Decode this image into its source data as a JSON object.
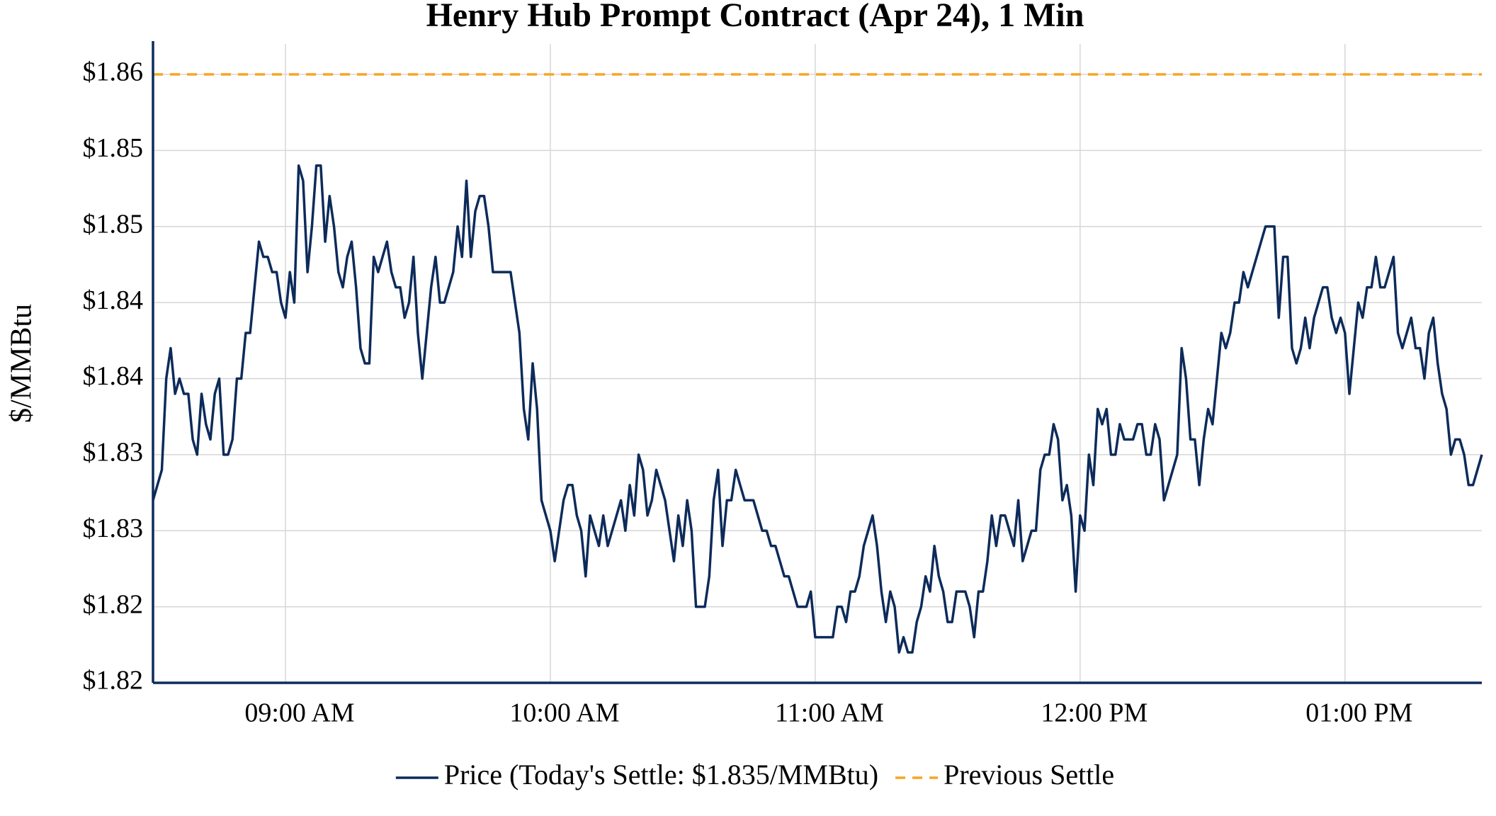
{
  "chart_data": {
    "type": "line",
    "title": "Henry Hub Prompt Contract (Apr 24), 1 Min",
    "y_label": "$/MMBtu",
    "x": [
      510,
      511,
      512,
      513,
      514,
      515,
      516,
      517,
      518,
      519,
      520,
      521,
      522,
      523,
      524,
      525,
      526,
      527,
      528,
      529,
      530,
      531,
      532,
      533,
      534,
      535,
      536,
      537,
      538,
      539,
      540,
      541,
      542,
      543,
      544,
      545,
      546,
      547,
      548,
      549,
      550,
      551,
      552,
      553,
      554,
      555,
      556,
      557,
      558,
      559,
      560,
      561,
      562,
      563,
      564,
      565,
      566,
      567,
      568,
      569,
      570,
      571,
      572,
      573,
      574,
      575,
      576,
      577,
      578,
      579,
      580,
      581,
      582,
      583,
      584,
      585,
      586,
      587,
      588,
      589,
      590,
      591,
      592,
      593,
      594,
      595,
      596,
      597,
      598,
      599,
      600,
      601,
      602,
      603,
      604,
      605,
      606,
      607,
      608,
      609,
      610,
      611,
      612,
      613,
      614,
      615,
      616,
      617,
      618,
      619,
      620,
      621,
      622,
      623,
      624,
      625,
      626,
      627,
      628,
      629,
      630,
      631,
      632,
      633,
      634,
      635,
      636,
      637,
      638,
      639,
      640,
      641,
      642,
      643,
      644,
      645,
      646,
      647,
      648,
      649,
      650,
      651,
      652,
      653,
      654,
      655,
      656,
      657,
      658,
      659,
      660,
      661,
      662,
      663,
      664,
      665,
      666,
      667,
      668,
      669,
      670,
      671,
      672,
      673,
      674,
      675,
      676,
      677,
      678,
      679,
      680,
      681,
      682,
      683,
      684,
      685,
      686,
      687,
      688,
      689,
      690,
      691,
      692,
      693,
      694,
      695,
      696,
      697,
      698,
      699,
      700,
      701,
      702,
      703,
      704,
      705,
      706,
      707,
      708,
      709,
      710,
      711,
      712,
      713,
      714,
      715,
      716,
      717,
      718,
      719,
      720,
      721,
      722,
      723,
      724,
      725,
      726,
      727,
      728,
      729,
      730,
      731,
      732,
      733,
      734,
      735,
      736,
      737,
      738,
      739,
      740,
      741,
      742,
      743,
      744,
      745,
      746,
      747,
      748,
      749,
      750,
      751,
      752,
      753,
      754,
      755,
      756,
      757,
      758,
      759,
      760,
      761,
      762,
      763,
      764,
      765,
      766,
      767,
      768,
      769,
      770,
      771,
      772,
      773,
      774,
      775,
      776,
      777,
      778,
      779,
      780,
      781,
      782,
      783,
      784,
      785,
      786,
      787,
      788,
      789,
      790,
      791,
      792,
      793,
      794,
      795,
      796,
      797,
      798,
      799,
      800,
      801,
      802,
      803,
      804,
      805,
      806,
      807,
      808,
      809,
      810,
      811
    ],
    "series": [
      {
        "name": "Price (Today's Settle: $1.835/MMBtu)",
        "color": "#0d2b5a",
        "values": [
          1.832,
          1.833,
          1.834,
          1.84,
          1.842,
          1.839,
          1.84,
          1.839,
          1.839,
          1.836,
          1.835,
          1.839,
          1.837,
          1.836,
          1.839,
          1.84,
          1.835,
          1.835,
          1.836,
          1.84,
          1.84,
          1.843,
          1.843,
          1.846,
          1.849,
          1.848,
          1.848,
          1.847,
          1.847,
          1.845,
          1.844,
          1.847,
          1.845,
          1.854,
          1.853,
          1.847,
          1.85,
          1.854,
          1.854,
          1.849,
          1.852,
          1.85,
          1.847,
          1.846,
          1.848,
          1.849,
          1.846,
          1.842,
          1.841,
          1.841,
          1.848,
          1.847,
          1.848,
          1.849,
          1.847,
          1.846,
          1.846,
          1.844,
          1.845,
          1.848,
          1.843,
          1.84,
          1.843,
          1.846,
          1.848,
          1.845,
          1.845,
          1.846,
          1.847,
          1.85,
          1.848,
          1.853,
          1.848,
          1.851,
          1.852,
          1.852,
          1.85,
          1.847,
          1.847,
          1.847,
          1.847,
          1.847,
          1.845,
          1.843,
          1.838,
          1.836,
          1.841,
          1.838,
          1.832,
          1.831,
          1.83,
          1.828,
          1.83,
          1.832,
          1.833,
          1.833,
          1.831,
          1.83,
          1.827,
          1.831,
          1.83,
          1.829,
          1.831,
          1.829,
          1.83,
          1.831,
          1.832,
          1.83,
          1.833,
          1.831,
          1.835,
          1.834,
          1.831,
          1.832,
          1.834,
          1.833,
          1.832,
          1.83,
          1.828,
          1.831,
          1.829,
          1.832,
          1.83,
          1.825,
          1.825,
          1.825,
          1.827,
          1.832,
          1.834,
          1.829,
          1.832,
          1.832,
          1.834,
          1.833,
          1.832,
          1.832,
          1.832,
          1.831,
          1.83,
          1.83,
          1.829,
          1.829,
          1.828,
          1.827,
          1.827,
          1.826,
          1.825,
          1.825,
          1.825,
          1.826,
          1.823,
          1.823,
          1.823,
          1.823,
          1.823,
          1.825,
          1.825,
          1.824,
          1.826,
          1.826,
          1.827,
          1.829,
          1.83,
          1.831,
          1.829,
          1.826,
          1.824,
          1.826,
          1.825,
          1.822,
          1.823,
          1.822,
          1.822,
          1.824,
          1.825,
          1.827,
          1.826,
          1.829,
          1.827,
          1.826,
          1.824,
          1.824,
          1.826,
          1.826,
          1.826,
          1.825,
          1.823,
          1.826,
          1.826,
          1.828,
          1.831,
          1.829,
          1.831,
          1.831,
          1.83,
          1.829,
          1.832,
          1.828,
          1.829,
          1.83,
          1.83,
          1.834,
          1.835,
          1.835,
          1.837,
          1.836,
          1.832,
          1.833,
          1.831,
          1.826,
          1.831,
          1.83,
          1.835,
          1.833,
          1.838,
          1.837,
          1.838,
          1.835,
          1.835,
          1.837,
          1.836,
          1.836,
          1.836,
          1.837,
          1.837,
          1.835,
          1.835,
          1.837,
          1.836,
          1.832,
          1.833,
          1.834,
          1.835,
          1.842,
          1.84,
          1.836,
          1.836,
          1.833,
          1.836,
          1.838,
          1.837,
          1.84,
          1.843,
          1.842,
          1.843,
          1.845,
          1.845,
          1.847,
          1.846,
          1.847,
          1.848,
          1.849,
          1.85,
          1.85,
          1.85,
          1.844,
          1.848,
          1.848,
          1.842,
          1.841,
          1.842,
          1.844,
          1.842,
          1.844,
          1.845,
          1.846,
          1.846,
          1.844,
          1.843,
          1.844,
          1.843,
          1.839,
          1.842,
          1.845,
          1.844,
          1.846,
          1.846,
          1.848,
          1.846,
          1.846,
          1.847,
          1.848,
          1.843,
          1.842,
          1.843,
          1.844,
          1.842,
          1.842,
          1.84,
          1.843,
          1.844,
          1.841,
          1.839,
          1.838,
          1.835,
          1.836,
          1.836,
          1.835,
          1.833,
          1.833,
          1.834,
          1.835
        ]
      }
    ],
    "reference_line": {
      "name": "Previous Settle",
      "value": 1.86,
      "color": "#f5a623",
      "dashed": true
    },
    "xlim": [
      510,
      811
    ],
    "xticks": [
      {
        "value": 540,
        "label": "09:00 AM"
      },
      {
        "value": 600,
        "label": "10:00 AM"
      },
      {
        "value": 660,
        "label": "11:00 AM"
      },
      {
        "value": 720,
        "label": "12:00 PM"
      },
      {
        "value": 780,
        "label": "01:00 PM"
      }
    ],
    "ylim": [
      1.82,
      1.862
    ],
    "yticks": [
      {
        "value": 1.82,
        "label": "$1.82"
      },
      {
        "value": 1.825,
        "label": "$1.82"
      },
      {
        "value": 1.83,
        "label": "$1.83"
      },
      {
        "value": 1.835,
        "label": "$1.83"
      },
      {
        "value": 1.84,
        "label": "$1.84"
      },
      {
        "value": 1.845,
        "label": "$1.84"
      },
      {
        "value": 1.85,
        "label": "$1.85"
      },
      {
        "value": 1.855,
        "label": "$1.85"
      },
      {
        "value": 1.86,
        "label": "$1.86"
      }
    ],
    "grid": true,
    "legend": "bottom"
  }
}
